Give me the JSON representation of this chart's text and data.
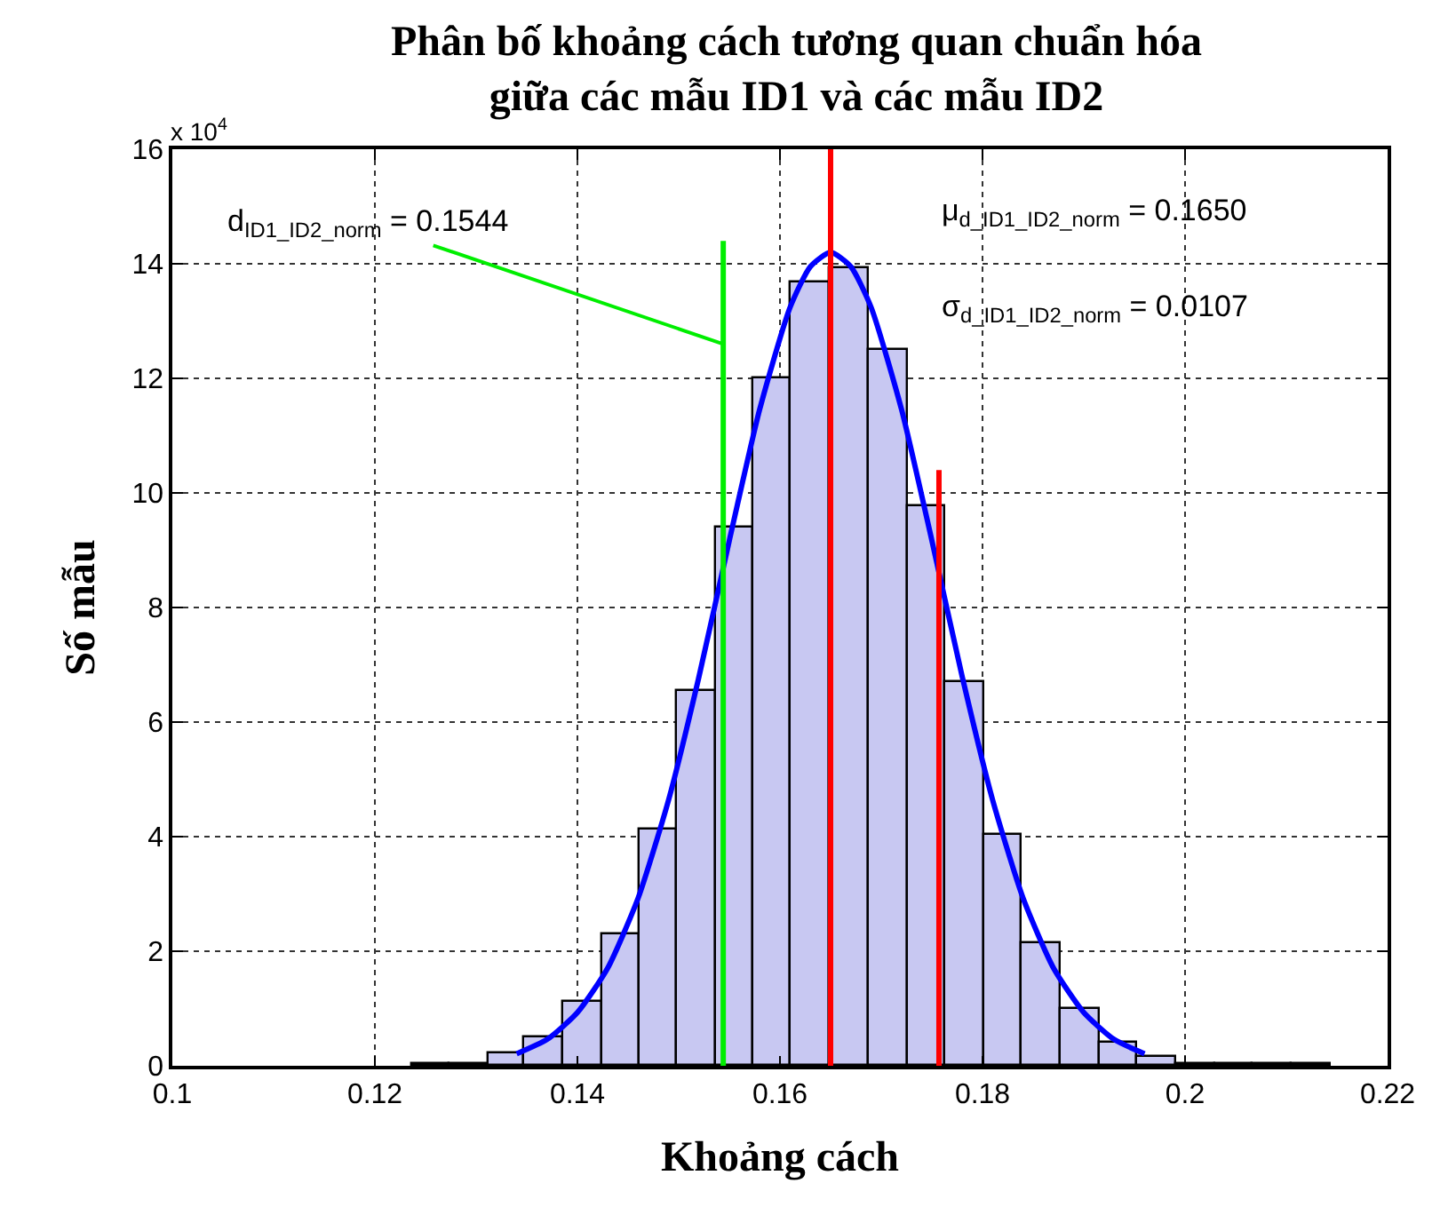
{
  "chart_data": {
    "type": "histogram",
    "title": "Phân bố khoảng cách tương quan chuẩn hóa\ngiữa các mẫu ID1 và các mẫu ID2",
    "xlabel": "Khoảng cách",
    "ylabel": "Số mẫu",
    "bins": [
      0.1236,
      0.1274,
      0.1312,
      0.1348,
      0.1386,
      0.1424,
      0.1462,
      0.1499,
      0.1536,
      0.1574,
      0.1611,
      0.1649,
      0.1688,
      0.1726,
      0.1764,
      0.1801,
      0.1839,
      0.1877,
      0.1915,
      0.1952,
      0.1991,
      0.2029,
      0.2067,
      0.2105,
      0.2143
    ],
    "values": [
      0.02,
      0.02,
      0.21,
      0.5,
      1.12,
      2.29,
      4.11,
      6.55,
      9.39,
      12.01,
      13.68,
      13.93,
      12.51,
      9.77,
      6.7,
      4.03,
      2.14,
      1.0,
      0.39,
      0.16,
      0.02,
      0.02,
      0.02,
      0.02
    ],
    "color": "#c8c8f2",
    "series": [
      {
        "type": "line",
        "color": "#0000ff",
        "x": [
          0.134,
          0.137,
          0.14,
          0.143,
          0.146,
          0.149,
          0.152,
          0.155,
          0.158,
          0.161,
          0.163,
          0.165,
          0.167,
          0.169,
          0.172,
          0.175,
          0.178,
          0.181,
          0.184,
          0.187,
          0.19,
          0.193,
          0.196
        ],
        "values": [
          0.21,
          0.46,
          0.93,
          1.71,
          2.93,
          4.64,
          6.79,
          9.17,
          11.46,
          13.24,
          13.95,
          14.2,
          13.95,
          13.24,
          11.46,
          9.17,
          6.79,
          4.64,
          2.93,
          1.71,
          0.93,
          0.46,
          0.21
        ]
      }
    ],
    "ref_lines": [
      {
        "axis": "x",
        "value": 0.1544,
        "color": "#00ee00"
      },
      {
        "axis": "x",
        "value": 0.165,
        "color": "#ff0000"
      },
      {
        "axis": "x",
        "value": 0.1757,
        "color": "#ff0000"
      }
    ],
    "annotations": [
      {
        "text": "d$_{ID1_ID2_norm}$ = 0.1544",
        "x": 0.1544,
        "y": 12.6
      },
      "μ$_{d_ID1_ID2_norm}$ = 0.1650",
      "σ$_{d_ID1_ID2_norm}$ = 0.0107",
      "x 10$^{4}$"
    ],
    "xlim": [
      0.1,
      0.22
    ],
    "xticks": [
      0.1,
      0.12,
      0.14,
      0.16,
      0.18,
      0.2,
      0.22
    ],
    "ylim": [
      0,
      16
    ],
    "yticks": [
      0,
      2,
      4,
      6,
      8,
      10,
      12,
      14,
      16
    ],
    "grid": true
  }
}
